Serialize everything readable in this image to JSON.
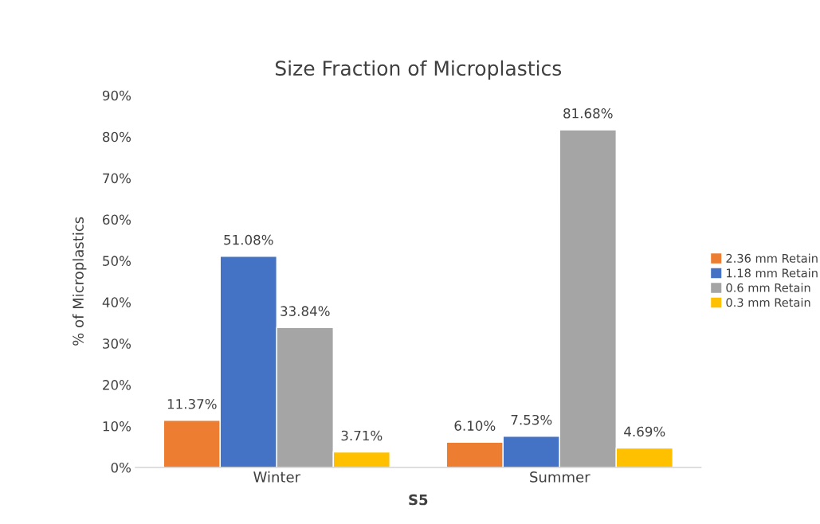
{
  "chart_data": {
    "type": "bar",
    "title": "Size Fraction of Microplastics",
    "xlabel": "S5",
    "ylabel": "% of Microplastics",
    "categories": [
      "Winter",
      "Summer"
    ],
    "series": [
      {
        "name": "2.36 mm Retain",
        "color": "#ed7d31",
        "values": [
          11.37,
          6.1
        ],
        "value_labels": [
          "11.37%",
          "6.10%"
        ]
      },
      {
        "name": "1.18 mm Retain",
        "color": "#4472c4",
        "values": [
          51.08,
          7.53
        ],
        "value_labels": [
          "51.08%",
          "7.53%"
        ]
      },
      {
        "name": "0.6 mm Retain",
        "color": "#a5a5a5",
        "values": [
          33.84,
          81.68
        ],
        "value_labels": [
          "33.84%",
          "81.68%"
        ]
      },
      {
        "name": "0.3 mm Retain",
        "color": "#ffc000",
        "values": [
          3.71,
          4.69
        ],
        "value_labels": [
          "3.71%",
          "4.69%"
        ]
      }
    ],
    "ylim": [
      0,
      90
    ],
    "yticks": [
      {
        "value": 0,
        "label": "0%"
      },
      {
        "value": 10,
        "label": "10%"
      },
      {
        "value": 20,
        "label": "20%"
      },
      {
        "value": 30,
        "label": "30%"
      },
      {
        "value": 40,
        "label": "40%"
      },
      {
        "value": 50,
        "label": "50%"
      },
      {
        "value": 60,
        "label": "60%"
      },
      {
        "value": 70,
        "label": "70%"
      },
      {
        "value": 80,
        "label": "80%"
      },
      {
        "value": 90,
        "label": "90%"
      }
    ],
    "legend": "right",
    "grid": false
  }
}
